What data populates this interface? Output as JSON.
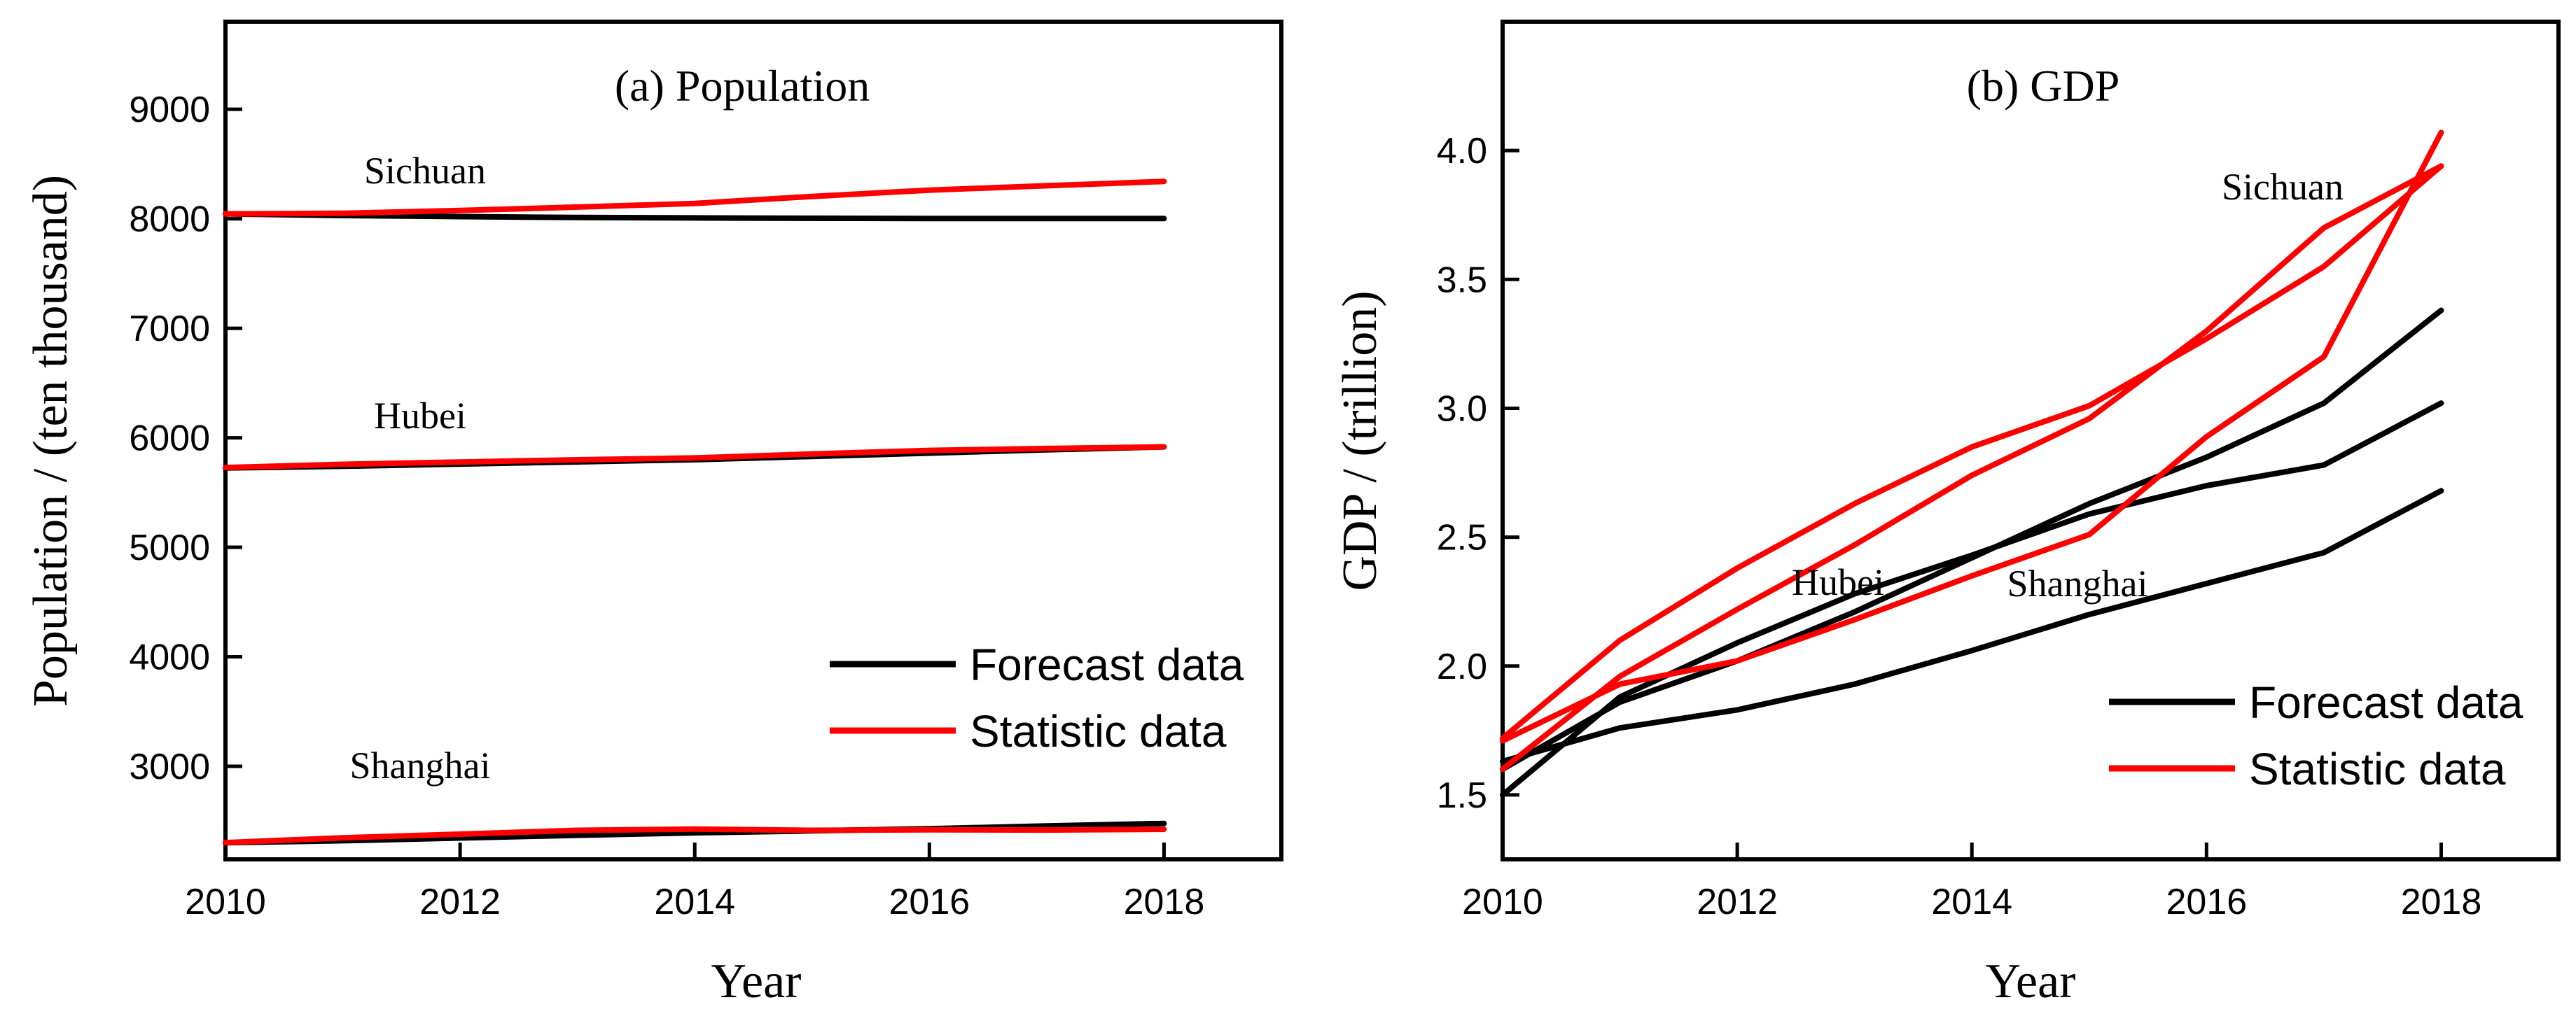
{
  "chart_data": [
    {
      "type": "line",
      "title": "(a) Population",
      "xlabel": "Year",
      "ylabel": "Population / (ten thousand)",
      "xlim": [
        2010,
        2019
      ],
      "ylim": [
        2150,
        9800
      ],
      "xticks": [
        2010,
        2012,
        2014,
        2016,
        2018
      ],
      "xtick_labels": [
        "2010",
        "2012",
        "2014",
        "2016",
        "2018"
      ],
      "yticks": [
        3000,
        4000,
        5000,
        6000,
        7000,
        8000,
        9000
      ],
      "ytick_labels": [
        "3000",
        "4000",
        "5000",
        "6000",
        "7000",
        "8000",
        "9000"
      ],
      "x": [
        2010,
        2011,
        2012,
        2013,
        2014,
        2015,
        2016,
        2017,
        2018
      ],
      "legend": {
        "position": "bottom-right",
        "entries": [
          {
            "label": "Forecast data",
            "color": "#000000"
          },
          {
            "label": "Statistic data",
            "color": "#ff0000"
          }
        ]
      },
      "annotations": [
        {
          "text": "Sichuan",
          "x": 2011.8,
          "y": 8560
        },
        {
          "text": "Hubei",
          "x": 2011.7,
          "y": 6120
        },
        {
          "text": "Shanghai",
          "x": 2011.8,
          "y": 2760
        }
      ],
      "series": [
        {
          "name": "Sichuan forecast",
          "kind": "Forecast data",
          "color": "#000000",
          "values": [
            8045,
            8030,
            8020,
            8012,
            8008,
            8005,
            8003,
            8002,
            8002
          ]
        },
        {
          "name": "Sichuan statistic",
          "kind": "Statistic data",
          "color": "#ff0000",
          "values": [
            8045,
            8050,
            8076,
            8107,
            8140,
            8204,
            8262,
            8302,
            8341
          ]
        },
        {
          "name": "Hubei forecast",
          "kind": "Forecast data",
          "color": "#000000",
          "values": [
            5724,
            5740,
            5760,
            5780,
            5800,
            5830,
            5860,
            5890,
            5917
          ]
        },
        {
          "name": "Hubei statistic",
          "kind": "Statistic data",
          "color": "#ff0000",
          "values": [
            5728,
            5758,
            5779,
            5799,
            5816,
            5852,
            5885,
            5902,
            5917
          ]
        },
        {
          "name": "Shanghai forecast",
          "kind": "Forecast data",
          "color": "#000000",
          "values": [
            2302,
            2320,
            2345,
            2370,
            2392,
            2410,
            2430,
            2455,
            2478
          ]
        },
        {
          "name": "Shanghai statistic",
          "kind": "Statistic data",
          "color": "#ff0000",
          "values": [
            2303,
            2347,
            2380,
            2415,
            2426,
            2415,
            2420,
            2418,
            2424
          ]
        }
      ]
    },
    {
      "type": "line",
      "title": "(b) GDP",
      "xlabel": "Year",
      "ylabel": "GDP / (trillion)",
      "xlim": [
        2010,
        2019
      ],
      "ylim": [
        1.25,
        4.5
      ],
      "xticks": [
        2010,
        2012,
        2014,
        2016,
        2018
      ],
      "xtick_labels": [
        "2010",
        "2012",
        "2014",
        "2016",
        "2018"
      ],
      "yticks": [
        1.5,
        2.0,
        2.5,
        3.0,
        3.5,
        4.0
      ],
      "ytick_labels": [
        "1.5",
        "2.0",
        "2.5",
        "3.0",
        "3.5",
        "4.0"
      ],
      "x": [
        2010,
        2011,
        2012,
        2013,
        2014,
        2015,
        2016,
        2017,
        2018
      ],
      "legend": {
        "position": "bottom-right",
        "entries": [
          {
            "label": "Forecast data",
            "color": "#000000"
          },
          {
            "label": "Statistic data",
            "color": "#ff0000"
          }
        ]
      },
      "annotations": [
        {
          "text": "Sichuan",
          "x": 2016.1,
          "y": 4.1
        },
        {
          "text": "Hubei",
          "x": 2012.4,
          "y": 2.33
        },
        {
          "text": "Shanghai",
          "x": 2014.1,
          "y": 2.32
        }
      ],
      "series": [
        {
          "name": "Sichuan forecast",
          "kind": "Forecast data",
          "color": "#000000",
          "values": [
            1.63,
            1.76,
            1.83,
            1.93,
            2.06,
            2.2,
            2.32,
            2.44,
            2.68
          ]
        },
        {
          "name": "Sichuan statistic",
          "kind": "Statistic data",
          "color": "#ff0000",
          "values": [
            1.71,
            1.93,
            2.02,
            2.18,
            2.35,
            2.51,
            2.89,
            3.2,
            4.07
          ]
        },
        {
          "name": "Hubei forecast",
          "kind": "Forecast data",
          "color": "#000000",
          "values": [
            1.6,
            1.86,
            2.02,
            2.21,
            2.42,
            2.63,
            2.81,
            3.02,
            3.38
          ]
        },
        {
          "name": "Hubei statistic",
          "kind": "Statistic data",
          "color": "#ff0000",
          "values": [
            1.6,
            1.96,
            2.22,
            2.47,
            2.74,
            2.96,
            3.3,
            3.7,
            3.94
          ]
        },
        {
          "name": "Shanghai forecast",
          "kind": "Forecast data",
          "color": "#000000",
          "values": [
            1.5,
            1.88,
            2.09,
            2.28,
            2.43,
            2.59,
            2.7,
            2.78,
            3.02
          ]
        },
        {
          "name": "Shanghai statistic",
          "kind": "Statistic data",
          "color": "#ff0000",
          "values": [
            1.72,
            2.1,
            2.38,
            2.63,
            2.85,
            3.01,
            3.27,
            3.55,
            3.94
          ]
        }
      ]
    }
  ]
}
